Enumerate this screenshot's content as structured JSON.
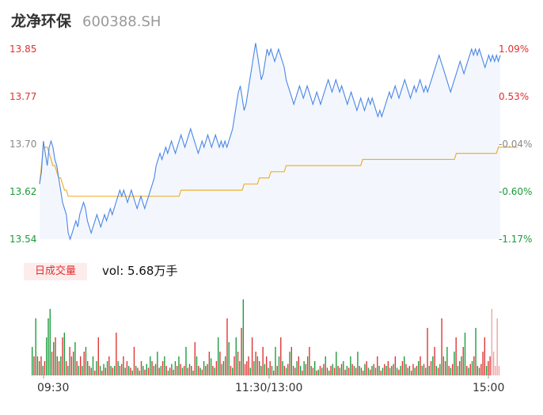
{
  "header": {
    "name": "龙净环保",
    "code": "600388.SH"
  },
  "price_axis": {
    "labels": [
      "13.85",
      "13.77",
      "13.70",
      "13.62",
      "13.54"
    ],
    "pct_labels": [
      "1.09%",
      "0.53%",
      "-0.04%",
      "-0.60%",
      "-1.17%"
    ]
  },
  "volume": {
    "tab_label": "日成交量",
    "summary": "vol: 5.68万手"
  },
  "time_axis": {
    "labels": [
      "09:30",
      "11:30/13:00",
      "15:00"
    ]
  },
  "colors": {
    "up": "#e03030",
    "down": "#1a9a3a",
    "neutral": "#888888",
    "price_line": "#4a86e8",
    "avg_line": "#f0b030",
    "area_fill": "#f3f7fd"
  },
  "chart_data": {
    "type": "line",
    "series": [
      {
        "values": [
          13.63,
          13.65,
          13.7,
          13.68,
          13.66,
          13.69,
          13.7,
          13.69,
          13.67,
          13.66,
          13.64,
          13.62,
          13.6,
          13.59,
          13.58,
          13.55,
          13.54,
          13.55,
          13.56,
          13.57,
          13.56,
          13.58,
          13.59,
          13.6,
          13.59,
          13.57,
          13.56,
          13.55,
          13.56,
          13.57,
          13.58,
          13.57,
          13.56,
          13.57,
          13.58,
          13.57,
          13.58,
          13.59,
          13.58,
          13.59,
          13.6,
          13.61,
          13.62,
          13.61,
          13.62,
          13.61,
          13.6,
          13.61,
          13.62,
          13.61,
          13.6,
          13.59,
          13.6,
          13.61,
          13.6,
          13.59,
          13.6,
          13.61,
          13.62,
          13.63,
          13.64,
          13.66,
          13.67,
          13.68,
          13.67,
          13.68,
          13.69,
          13.68,
          13.69,
          13.7,
          13.69,
          13.68,
          13.69,
          13.7,
          13.71,
          13.7,
          13.69,
          13.7,
          13.71,
          13.72,
          13.71,
          13.7,
          13.69,
          13.68,
          13.69,
          13.7,
          13.69,
          13.7,
          13.71,
          13.7,
          13.69,
          13.7,
          13.71,
          13.7,
          13.69,
          13.7,
          13.69,
          13.7,
          13.69,
          13.7,
          13.71,
          13.72,
          13.74,
          13.76,
          13.78,
          13.79,
          13.77,
          13.75,
          13.76,
          13.78,
          13.8,
          13.82,
          13.84,
          13.86,
          13.84,
          13.82,
          13.8,
          13.81,
          13.83,
          13.85,
          13.84,
          13.85,
          13.84,
          13.83,
          13.84,
          13.85,
          13.84,
          13.83,
          13.82,
          13.8,
          13.79,
          13.78,
          13.77,
          13.76,
          13.77,
          13.78,
          13.79,
          13.78,
          13.77,
          13.78,
          13.79,
          13.78,
          13.77,
          13.76,
          13.77,
          13.78,
          13.77,
          13.76,
          13.77,
          13.78,
          13.79,
          13.8,
          13.79,
          13.78,
          13.79,
          13.8,
          13.79,
          13.78,
          13.79,
          13.78,
          13.77,
          13.76,
          13.77,
          13.78,
          13.77,
          13.76,
          13.75,
          13.76,
          13.77,
          13.76,
          13.75,
          13.76,
          13.77,
          13.76,
          13.77,
          13.76,
          13.75,
          13.74,
          13.75,
          13.74,
          13.75,
          13.76,
          13.77,
          13.78,
          13.77,
          13.78,
          13.79,
          13.78,
          13.77,
          13.78,
          13.79,
          13.8,
          13.79,
          13.78,
          13.77,
          13.78,
          13.79,
          13.78,
          13.79,
          13.8,
          13.79,
          13.78,
          13.79,
          13.78,
          13.79,
          13.8,
          13.81,
          13.82,
          13.83,
          13.84,
          13.83,
          13.82,
          13.81,
          13.8,
          13.79,
          13.78,
          13.79,
          13.8,
          13.81,
          13.82,
          13.83,
          13.82,
          13.81,
          13.82,
          13.83,
          13.84,
          13.85,
          13.84,
          13.85,
          13.84,
          13.85,
          13.84,
          13.83,
          13.82,
          13.83,
          13.84,
          13.83,
          13.84,
          13.83,
          13.84,
          13.83,
          13.84
        ],
        "color": "#4a86e8"
      },
      {
        "values": [
          13.63,
          13.66,
          13.69,
          13.69,
          13.69,
          13.68,
          13.67,
          13.66,
          13.66,
          13.65,
          13.64,
          13.64,
          13.63,
          13.62,
          13.62,
          13.61,
          13.61,
          13.61,
          13.61,
          13.61,
          13.61,
          13.61,
          13.61,
          13.61,
          13.61,
          13.61,
          13.61,
          13.61,
          13.61,
          13.61,
          13.61,
          13.61,
          13.61,
          13.61,
          13.61,
          13.61,
          13.61,
          13.61,
          13.61,
          13.61,
          13.61,
          13.61,
          13.61,
          13.61,
          13.61,
          13.61,
          13.61,
          13.61,
          13.61,
          13.61,
          13.61,
          13.61,
          13.61,
          13.61,
          13.61,
          13.61,
          13.61,
          13.61,
          13.61,
          13.61,
          13.61,
          13.61,
          13.61,
          13.61,
          13.61,
          13.61,
          13.61,
          13.61,
          13.61,
          13.61,
          13.61,
          13.61,
          13.61,
          13.61,
          13.62,
          13.62,
          13.62,
          13.62,
          13.62,
          13.62,
          13.62,
          13.62,
          13.62,
          13.62,
          13.62,
          13.62,
          13.62,
          13.62,
          13.62,
          13.62,
          13.62,
          13.62,
          13.62,
          13.62,
          13.62,
          13.62,
          13.62,
          13.62,
          13.62,
          13.62,
          13.62,
          13.62,
          13.62,
          13.62,
          13.62,
          13.62,
          13.62,
          13.63,
          13.63,
          13.63,
          13.63,
          13.63,
          13.63,
          13.63,
          13.63,
          13.64,
          13.64,
          13.64,
          13.64,
          13.64,
          13.64,
          13.65,
          13.65,
          13.65,
          13.65,
          13.65,
          13.65,
          13.65,
          13.65,
          13.66,
          13.66,
          13.66,
          13.66,
          13.66,
          13.66,
          13.66,
          13.66,
          13.66,
          13.66,
          13.66,
          13.66,
          13.66,
          13.66,
          13.66,
          13.66,
          13.66,
          13.66,
          13.66,
          13.66,
          13.66,
          13.66,
          13.66,
          13.66,
          13.66,
          13.66,
          13.66,
          13.66,
          13.66,
          13.66,
          13.66,
          13.66,
          13.66,
          13.66,
          13.66,
          13.66,
          13.66,
          13.66,
          13.66,
          13.66,
          13.67,
          13.67,
          13.67,
          13.67,
          13.67,
          13.67,
          13.67,
          13.67,
          13.67,
          13.67,
          13.67,
          13.67,
          13.67,
          13.67,
          13.67,
          13.67,
          13.67,
          13.67,
          13.67,
          13.67,
          13.67,
          13.67,
          13.67,
          13.67,
          13.67,
          13.67,
          13.67,
          13.67,
          13.67,
          13.67,
          13.67,
          13.67,
          13.67,
          13.67,
          13.67,
          13.67,
          13.67,
          13.67,
          13.67,
          13.67,
          13.67,
          13.67,
          13.67,
          13.67,
          13.67,
          13.67,
          13.67,
          13.67,
          13.67,
          13.68,
          13.68,
          13.68,
          13.68,
          13.68,
          13.68,
          13.68,
          13.68,
          13.68,
          13.68,
          13.68,
          13.68,
          13.68,
          13.68,
          13.68,
          13.68,
          13.68,
          13.68,
          13.68,
          13.68,
          13.68,
          13.68,
          13.69,
          13.69,
          13.69,
          13.69,
          13.69,
          13.69,
          13.69,
          13.69,
          13.69,
          13.69,
          13.69
        ],
        "color": "#f0b030"
      }
    ],
    "ylim": [
      13.54,
      13.85
    ],
    "pct_range": [
      -1.17,
      1.09
    ],
    "volume_bars": {
      "type": "bar",
      "values": [
        30,
        20,
        60,
        20,
        15,
        20,
        10,
        15,
        40,
        60,
        70,
        25,
        35,
        40,
        20,
        15,
        20,
        40,
        45,
        15,
        10,
        30,
        20,
        25,
        35,
        15,
        10,
        20,
        10,
        25,
        30,
        15,
        10,
        8,
        20,
        5,
        15,
        40,
        10,
        5,
        12,
        8,
        15,
        20,
        10,
        8,
        10,
        45,
        15,
        10,
        12,
        20,
        8,
        15,
        10,
        8,
        5,
        30,
        10,
        8,
        5,
        15,
        10,
        6,
        12,
        8,
        20,
        15,
        10,
        12,
        25,
        8,
        10,
        15,
        20,
        10,
        5,
        8,
        12,
        6,
        15,
        10,
        20,
        12,
        8,
        10,
        30,
        8,
        12,
        10,
        5,
        35,
        20,
        10,
        8,
        6,
        15,
        10,
        12,
        25,
        18,
        10,
        8,
        15,
        40,
        25,
        12,
        15,
        20,
        60,
        35,
        10,
        8,
        20,
        40,
        25,
        15,
        50,
        80,
        12,
        15,
        20,
        8,
        40,
        15,
        25,
        20,
        15,
        10,
        30,
        12,
        20,
        8,
        15,
        10,
        5,
        30,
        10,
        20,
        40,
        15,
        10,
        8,
        12,
        25,
        30,
        10,
        8,
        15,
        20,
        10,
        5,
        15,
        12,
        20,
        30,
        10,
        8,
        15,
        5,
        6,
        10,
        8,
        12,
        20,
        8,
        5,
        10,
        12,
        8,
        25,
        10,
        8,
        12,
        15,
        6,
        10,
        8,
        20,
        12,
        10,
        8,
        25,
        10,
        8,
        5,
        12,
        15,
        8,
        6,
        10,
        12,
        8,
        20,
        10,
        5,
        8,
        12,
        10,
        15,
        8,
        10,
        12,
        20,
        8,
        6,
        10,
        15,
        20,
        12,
        8,
        10,
        5,
        12,
        8,
        10,
        15,
        20,
        10,
        12,
        8,
        50,
        10,
        15,
        20,
        30,
        10,
        8,
        12,
        60,
        20,
        15,
        30,
        10,
        8,
        12,
        25,
        40,
        10,
        15,
        20,
        30,
        45,
        10,
        8,
        12,
        15,
        20,
        50,
        10,
        8,
        12,
        25,
        40,
        10,
        15,
        20,
        70,
        25,
        10,
        60,
        10
      ],
      "colors": [
        "d",
        "u",
        "d",
        "u",
        "d",
        "u",
        "d",
        "u",
        "d",
        "d",
        "d",
        "u",
        "d",
        "u",
        "d",
        "u",
        "d",
        "u",
        "d",
        "u",
        "d",
        "u",
        "d",
        "u",
        "d",
        "u",
        "d",
        "u",
        "d",
        "u",
        "d",
        "u",
        "d",
        "u",
        "d",
        "u",
        "d",
        "u",
        "d",
        "u",
        "d",
        "u",
        "d",
        "u",
        "d",
        "u",
        "d",
        "u",
        "d",
        "u",
        "d",
        "u",
        "d",
        "u",
        "d",
        "u",
        "d",
        "u",
        "d",
        "u",
        "d",
        "u",
        "d",
        "u",
        "d",
        "u",
        "d",
        "u",
        "d",
        "u",
        "d",
        "u",
        "d",
        "u",
        "d",
        "u",
        "d",
        "u",
        "d",
        "u",
        "d",
        "u",
        "d",
        "u",
        "d",
        "u",
        "d",
        "u",
        "d",
        "u",
        "d",
        "u",
        "d",
        "u",
        "d",
        "u",
        "d",
        "u",
        "d",
        "u",
        "d",
        "u",
        "d",
        "u",
        "d",
        "u",
        "d",
        "u",
        "d",
        "u",
        "d",
        "u",
        "d",
        "u",
        "d",
        "u",
        "d",
        "u",
        "d",
        "u",
        "u",
        "u",
        "d",
        "u",
        "d",
        "u",
        "d",
        "u",
        "d",
        "u",
        "d",
        "u",
        "d",
        "u",
        "d",
        "u",
        "d",
        "u",
        "d",
        "u",
        "d",
        "u",
        "d",
        "u",
        "d",
        "u",
        "d",
        "u",
        "d",
        "u",
        "d",
        "u",
        "d",
        "u",
        "d",
        "u",
        "d",
        "u",
        "d",
        "u",
        "d",
        "u",
        "d",
        "u",
        "d",
        "u",
        "d",
        "u",
        "d",
        "u",
        "d",
        "u",
        "d",
        "u",
        "d",
        "u",
        "d",
        "u",
        "d",
        "u",
        "d",
        "u",
        "d",
        "u",
        "d",
        "u",
        "d",
        "u",
        "d",
        "u",
        "d",
        "u",
        "d",
        "u",
        "d",
        "u",
        "d",
        "u",
        "d",
        "u",
        "d",
        "u",
        "d",
        "u",
        "d",
        "u",
        "d",
        "u",
        "d",
        "u",
        "d",
        "u",
        "d",
        "u",
        "d",
        "u",
        "d",
        "u",
        "d",
        "u",
        "d",
        "u",
        "d",
        "u",
        "d",
        "u",
        "d",
        "u",
        "d",
        "u",
        "d",
        "u",
        "d",
        "u",
        "d",
        "u",
        "d",
        "u",
        "d",
        "u",
        "d",
        "u",
        "d",
        "u",
        "d",
        "u",
        "d",
        "u",
        "d",
        "u",
        "d",
        "u",
        "u",
        "u",
        "d",
        "u",
        "u",
        "n"
      ]
    }
  }
}
